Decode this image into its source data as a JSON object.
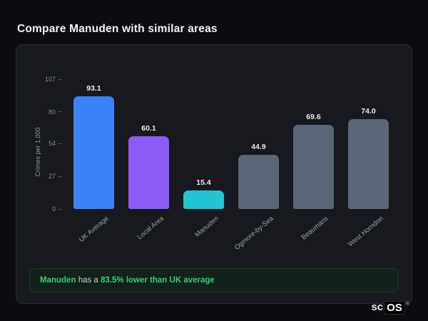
{
  "page": {
    "title": "Compare Manuden with similar areas"
  },
  "chart_data": {
    "type": "bar",
    "title": "",
    "ylabel": "Crimes per 1,000",
    "categories": [
      "UK Average",
      "Local Area",
      "Manuden",
      "Ogmore-by-Sea",
      "Beaumaris",
      "West Horndon"
    ],
    "values": [
      93.1,
      60.1,
      15.4,
      44.9,
      69.6,
      74.0
    ],
    "value_labels": [
      "93.1",
      "60.1",
      "15.4",
      "44.9",
      "69.6",
      "74.0"
    ],
    "bar_colors": [
      "#3b82f6",
      "#8b5cf6",
      "#23c4d4",
      "#5a6577",
      "#5a6577",
      "#5a6577"
    ],
    "yticks": [
      107,
      80,
      54,
      27,
      0
    ],
    "ylim": [
      0,
      107
    ],
    "grid": false,
    "legend": false
  },
  "annotation": {
    "area": "Manuden",
    "middle": " has a ",
    "stat": "83.5% lower than UK average"
  },
  "logo": {
    "prefix": "sc",
    "suffix": "OS",
    "reg": "®"
  }
}
